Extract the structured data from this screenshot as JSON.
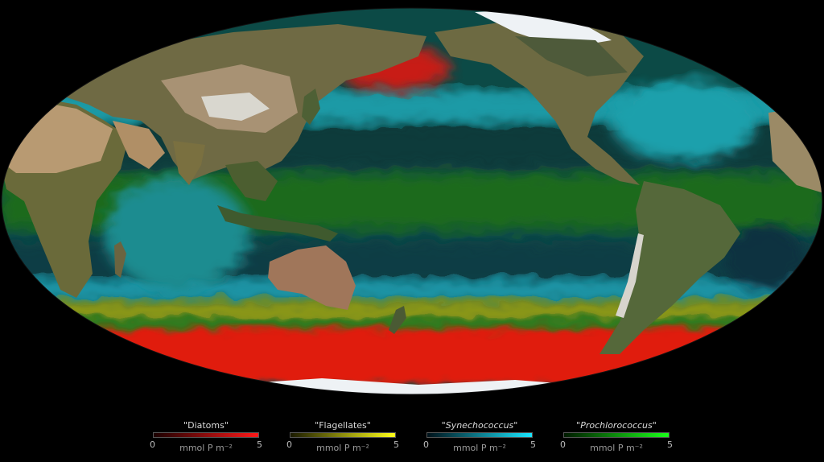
{
  "map": {
    "projection": "mollweide",
    "land_colors": {
      "desert": "#b89a72",
      "forest": "#3f5a2e",
      "ice": "#eef2f5"
    },
    "bands": [
      {
        "id": "southern-ocean",
        "group": "Diatoms",
        "color": "#e01a10"
      },
      {
        "id": "north-pacific-red",
        "group": "Diatoms",
        "color": "#c81a12"
      },
      {
        "id": "subtropical-blue",
        "group": "Synechococcus",
        "color": "#1fa4b0"
      },
      {
        "id": "equatorial-green",
        "group": "Prochlorococcus",
        "color": "#1f6a1c"
      },
      {
        "id": "temperate-yellow",
        "group": "Flagellates",
        "color": "#a8a818"
      }
    ]
  },
  "legend": [
    {
      "title": "\"Diatoms\"",
      "italic": false,
      "min": "0",
      "max": "5",
      "unit": "mmol P m⁻²",
      "from": "#1a0000",
      "to": "#ff1a1a"
    },
    {
      "title": "\"Flagellates\"",
      "italic": false,
      "min": "0",
      "max": "5",
      "unit": "mmol P m⁻²",
      "from": "#1a1a00",
      "to": "#ffff1a"
    },
    {
      "title": "\"Synechococcus\"",
      "italic": true,
      "min": "0",
      "max": "5",
      "unit": "mmol P m⁻²",
      "from": "#00121a",
      "to": "#1ae6ff"
    },
    {
      "title": "\"Prochlorococcus\"",
      "italic": true,
      "min": "0",
      "max": "5",
      "unit": "mmol P m⁻²",
      "from": "#001a00",
      "to": "#1aff1a"
    }
  ]
}
